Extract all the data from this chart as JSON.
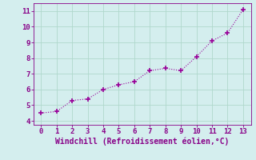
{
  "x": [
    0,
    1,
    2,
    3,
    4,
    5,
    6,
    7,
    8,
    9,
    10,
    11,
    12,
    13
  ],
  "y": [
    4.5,
    4.6,
    5.3,
    5.4,
    6.0,
    6.3,
    6.5,
    7.2,
    7.35,
    7.2,
    8.1,
    9.1,
    9.6,
    11.1
  ],
  "line_color": "#990099",
  "marker": "+",
  "marker_size": 4,
  "line_style": "dotted",
  "background_color": "#d4eeee",
  "grid_color": "#b0d8cc",
  "xlabel": "Windchill (Refroidissement éolien,°C)",
  "xlabel_color": "#880088",
  "tick_color": "#880088",
  "xlim": [
    -0.5,
    13.5
  ],
  "ylim": [
    3.75,
    11.5
  ],
  "yticks": [
    4,
    5,
    6,
    7,
    8,
    9,
    10,
    11
  ],
  "xticks": [
    0,
    1,
    2,
    3,
    4,
    5,
    6,
    7,
    8,
    9,
    10,
    11,
    12,
    13
  ],
  "tick_label_fontsize": 6.5,
  "xlabel_fontsize": 7.0
}
